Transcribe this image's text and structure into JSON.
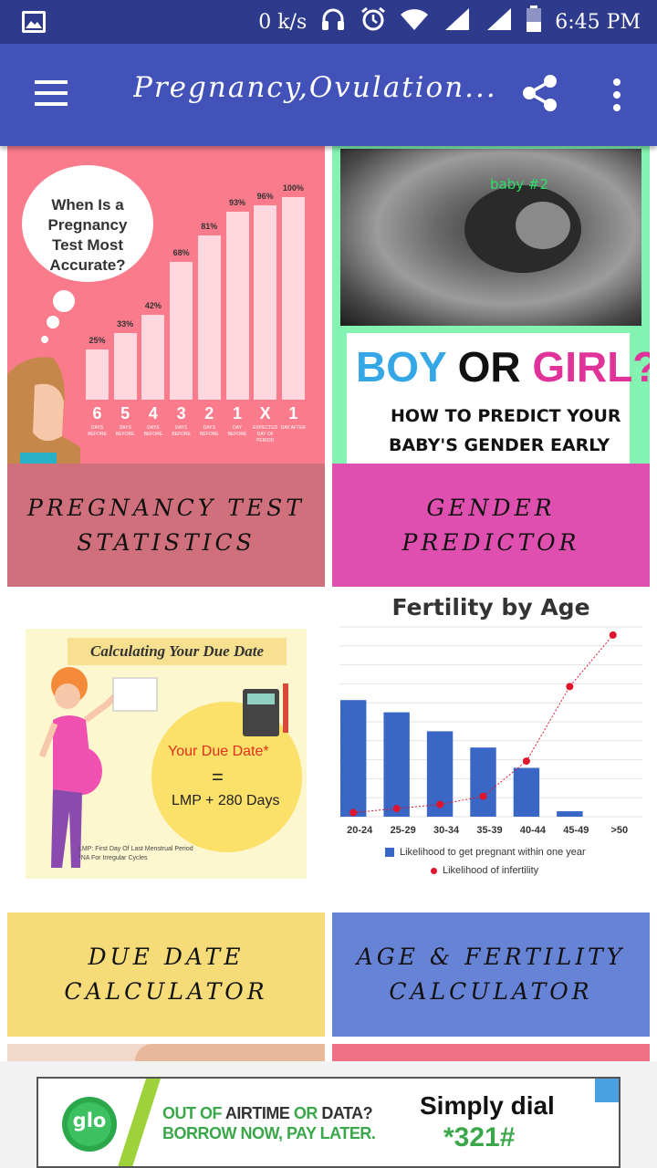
{
  "status_bar": {
    "speed": "0 k/s",
    "time": "6:45 PM"
  },
  "app_bar": {
    "title": "Pregnancy,Ovulation..."
  },
  "cards": [
    {
      "label": "PREGNANCY TEST STATISTICS",
      "thumb": {
        "heading": "When Is a Pregnancy Test Most Accurate?",
        "bars": [
          {
            "pct": "25%",
            "num": "6",
            "sub": "DAYS BEFORE",
            "value": 25
          },
          {
            "pct": "33%",
            "num": "5",
            "sub": "DAYS BEFORE",
            "value": 33
          },
          {
            "pct": "42%",
            "num": "4",
            "sub": "DAYS BEFORE",
            "value": 42
          },
          {
            "pct": "68%",
            "num": "3",
            "sub": "DAYS BEFORE",
            "value": 68
          },
          {
            "pct": "81%",
            "num": "2",
            "sub": "DAYS BEFORE",
            "value": 81
          },
          {
            "pct": "93%",
            "num": "1",
            "sub": "DAY BEFORE",
            "value": 93
          },
          {
            "pct": "96%",
            "num": "X",
            "sub": "EXPECTED DAY OF PERIOD",
            "value": 96
          },
          {
            "pct": "100%",
            "num": "1",
            "sub": "DAY AFTER",
            "value": 100
          }
        ]
      }
    },
    {
      "label": "GENDER PREDICTOR",
      "thumb": {
        "scan_text": "baby #2",
        "boy": "BOY",
        "or": "OR",
        "girl": "GIRL?",
        "line1": "HOW TO PREDICT YOUR",
        "line2": "BABY'S GENDER EARLY"
      }
    },
    {
      "label": "DUE DATE CALCULATOR",
      "thumb": {
        "banner": "Calculating Your Due Date",
        "due": "Your Due Date*",
        "eq": "=",
        "formula": "LMP + 280 Days",
        "foot1": "LMP: First Day Of Last Menstrual Period",
        "foot2": "*NA For Irregular Cycles"
      }
    },
    {
      "label": "AGE & FERTILITY CALCULATOR",
      "thumb": {
        "title": "Fertility by Age",
        "legend_bar": "Likelihood to get pregnant within one year",
        "legend_dot": "Likelihood of infertility"
      }
    }
  ],
  "chart_data": {
    "type": "bar",
    "title": "Fertility by Age",
    "categories": [
      "20-24",
      "25-29",
      "30-34",
      "35-39",
      "40-44",
      "45-49",
      ">50"
    ],
    "series": [
      {
        "name": "Likelihood to get pregnant within one year",
        "type": "bar",
        "values": [
          86,
          77,
          63,
          51,
          36,
          4,
          0
        ]
      },
      {
        "name": "Likelihood of infertility",
        "type": "line",
        "values": [
          3,
          6,
          9,
          15,
          41,
          96,
          134
        ]
      }
    ],
    "ylim": [
      0,
      140
    ],
    "grid": true,
    "legend": "bottom"
  },
  "ad": {
    "brand": "glo",
    "line1a": "OUT OF ",
    "line1b": "AIRTIME",
    "line1c": " OR ",
    "line1d": "DATA?",
    "line2": "BORROW NOW, PAY LATER.",
    "cta1": "Simply dial",
    "cta2": "*321#"
  },
  "colors": {
    "status_bar": "#2e3a8c",
    "app_bar": "#4352b8",
    "card1_label": "#d0707c",
    "card2_label": "#de4fb0",
    "card3_label": "#f5dc78",
    "card4_label": "#6783d6",
    "chart_bar": "#3a66c6",
    "chart_dot": "#e0142c"
  }
}
